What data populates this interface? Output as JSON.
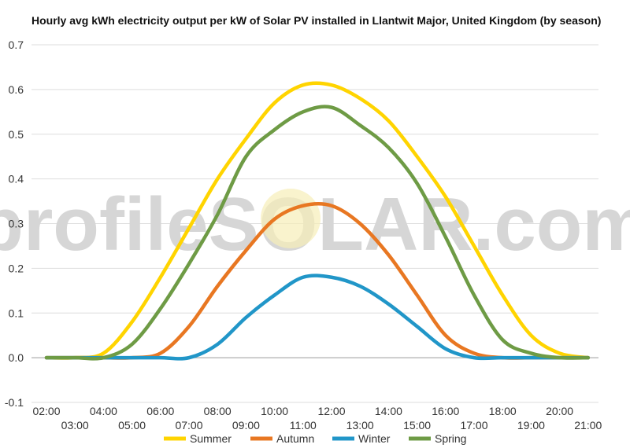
{
  "chart_data": {
    "type": "line",
    "title": "Hourly avg kWh electricity output per kW of Solar PV installed in Llantwit Major, United Kingdom (by season)",
    "xlabel": "",
    "ylabel": "",
    "ylim": [
      -0.1,
      0.7
    ],
    "y_ticks": [
      "0.7",
      "0.6",
      "0.5",
      "0.4",
      "0.3",
      "0.2",
      "0.1",
      "0.0",
      "-0.1"
    ],
    "y_tick_values": [
      0.7,
      0.6,
      0.5,
      0.4,
      0.3,
      0.2,
      0.1,
      0.0,
      -0.1
    ],
    "x": [
      "02:00",
      "03:00",
      "04:00",
      "05:00",
      "06:00",
      "07:00",
      "08:00",
      "09:00",
      "10:00",
      "11:00",
      "12:00",
      "13:00",
      "14:00",
      "15:00",
      "16:00",
      "17:00",
      "18:00",
      "19:00",
      "20:00",
      "21:00"
    ],
    "grid": true,
    "legend_position": "bottom",
    "watermark": "profileSOLAR.com",
    "series": [
      {
        "name": "Summer",
        "color": "#FFD400",
        "values": [
          0.0,
          0.0,
          0.01,
          0.08,
          0.18,
          0.29,
          0.4,
          0.49,
          0.57,
          0.61,
          0.61,
          0.58,
          0.53,
          0.45,
          0.36,
          0.25,
          0.14,
          0.05,
          0.01,
          0.0
        ]
      },
      {
        "name": "Autumn",
        "color": "#E87722",
        "values": [
          0.0,
          0.0,
          0.0,
          0.0,
          0.01,
          0.07,
          0.16,
          0.24,
          0.31,
          0.34,
          0.34,
          0.3,
          0.23,
          0.14,
          0.05,
          0.01,
          0.0,
          0.0,
          0.0,
          0.0
        ]
      },
      {
        "name": "Winter",
        "color": "#2196C8",
        "values": [
          0.0,
          0.0,
          0.0,
          0.0,
          0.0,
          0.0,
          0.03,
          0.09,
          0.14,
          0.18,
          0.18,
          0.16,
          0.12,
          0.07,
          0.02,
          0.0,
          0.0,
          0.0,
          0.0,
          0.0
        ]
      },
      {
        "name": "Spring",
        "color": "#6E9B45",
        "values": [
          0.0,
          0.0,
          0.0,
          0.03,
          0.11,
          0.21,
          0.32,
          0.45,
          0.51,
          0.55,
          0.56,
          0.52,
          0.47,
          0.39,
          0.27,
          0.14,
          0.04,
          0.01,
          0.0,
          0.0
        ]
      }
    ]
  }
}
